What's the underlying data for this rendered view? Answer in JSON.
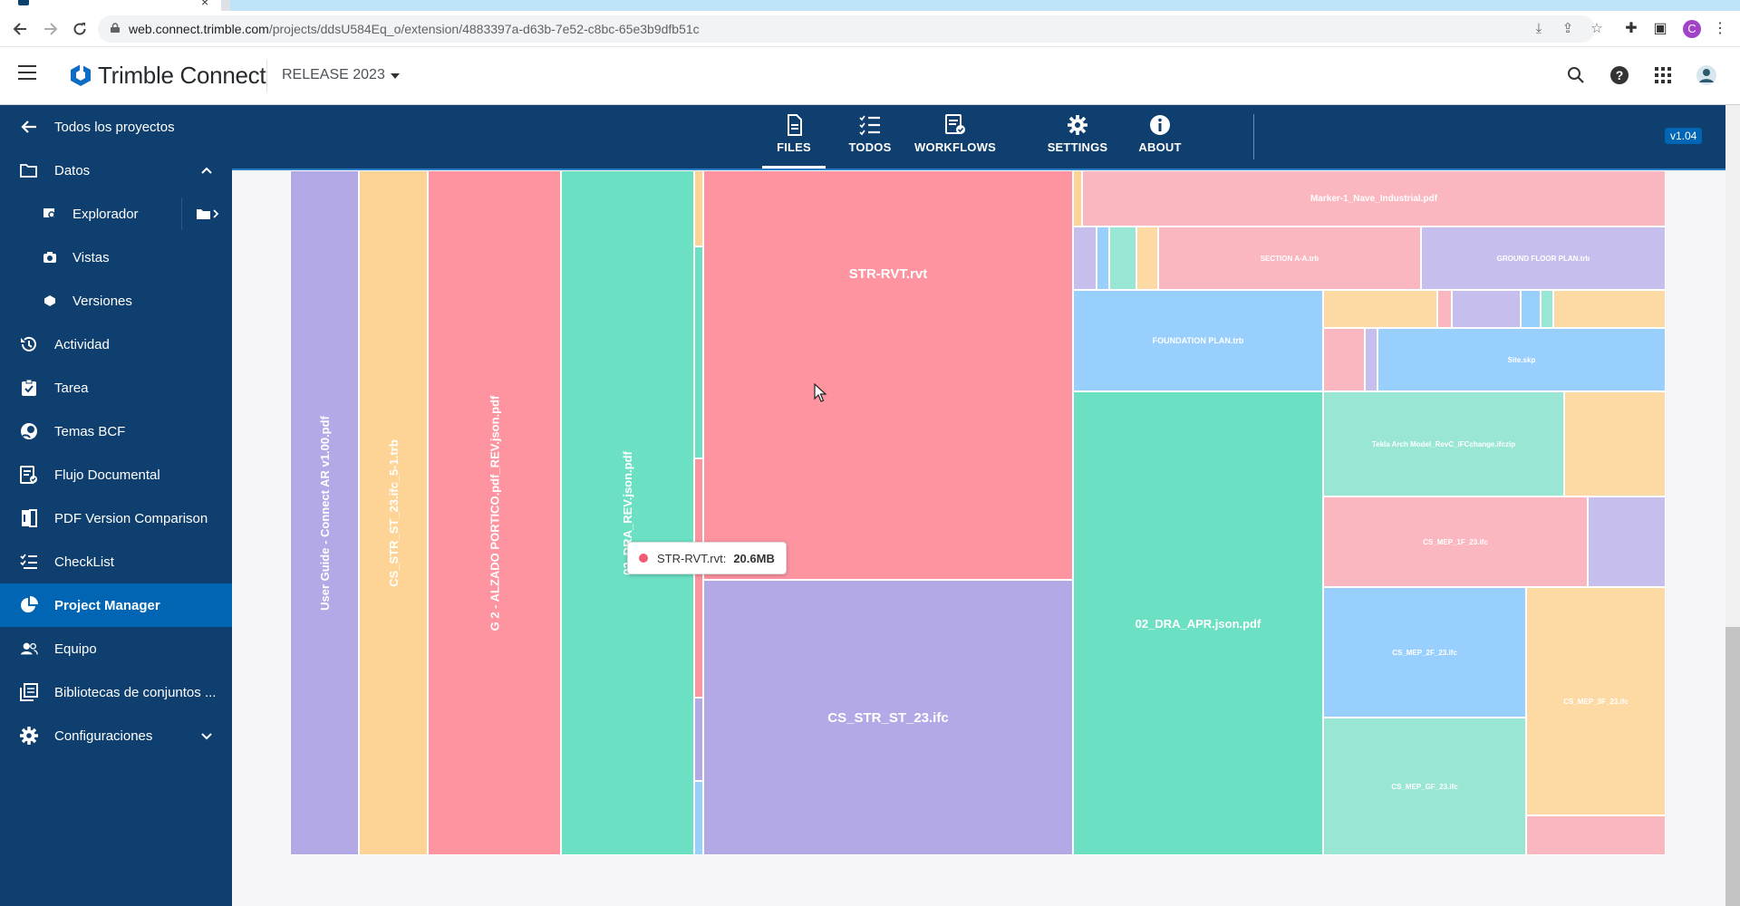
{
  "browser": {
    "url_host": "web.connect.trimble.com",
    "url_path": "/projects/ddsU584Eq_o/extension/4883397a-d63b-7e52-c8bc-65e3b9dfb51c",
    "profile_initial": "C"
  },
  "header": {
    "brand": "Trimble Connect",
    "project": "RELEASE 2023"
  },
  "sidebar": {
    "back_label": "Todos los proyectos",
    "items": [
      {
        "label": "Datos",
        "icon": "folder-icon"
      },
      {
        "label": "Explorador",
        "icon": "explorer-icon"
      },
      {
        "label": "Vistas",
        "icon": "camera-icon"
      },
      {
        "label": "Versiones",
        "icon": "versions-icon"
      },
      {
        "label": "Actividad",
        "icon": "history-icon"
      },
      {
        "label": "Tarea",
        "icon": "task-icon"
      },
      {
        "label": "Temas BCF",
        "icon": "bcf-icon"
      },
      {
        "label": "Flujo Documental",
        "icon": "workflow-icon"
      },
      {
        "label": "PDF Version Comparison",
        "icon": "pdf-compare-icon"
      },
      {
        "label": "CheckList",
        "icon": "checklist-icon"
      },
      {
        "label": "Project Manager",
        "icon": "pie-chart-icon"
      },
      {
        "label": "Equipo",
        "icon": "team-icon"
      },
      {
        "label": "Bibliotecas de conjuntos ...",
        "icon": "library-icon"
      },
      {
        "label": "Configuraciones",
        "icon": "gear-icon"
      }
    ]
  },
  "extension": {
    "tabs": [
      {
        "label": "FILES",
        "icon": "file-icon"
      },
      {
        "label": "TODOS",
        "icon": "list-icon"
      },
      {
        "label": "WORKFLOWS",
        "icon": "workflow-icon"
      },
      {
        "label": "SETTINGS",
        "icon": "gear-icon"
      },
      {
        "label": "ABOUT",
        "icon": "info-icon"
      }
    ],
    "active_tab": "FILES",
    "version": "v1.04"
  },
  "chart_data": {
    "type": "treemap",
    "unit": "MB",
    "tooltip": {
      "name": "STR-RVT.rvt:",
      "value": "20.6MB"
    },
    "items": [
      {
        "name": "User Guide - Connect AR v1.00.pdf",
        "color": "#b3a9e6"
      },
      {
        "name": "CS_STR_ST_23.ifc_5-1.trb",
        "color": "#fdd396"
      },
      {
        "name": "G 2 - ALZADO PORTICO.pdf_REV.json.pdf",
        "color": "#fd94a0"
      },
      {
        "name": "02_DRA_REV.json.pdf",
        "color": "#6ce0c3"
      },
      {
        "name": "STR-RVT.rvt",
        "value": 20.6,
        "color": "#fd94a0"
      },
      {
        "name": "CS_STR_ST_23.ifc",
        "color": "#b3a9e6"
      },
      {
        "name": "02_DRA_APR.json.pdf",
        "color": "#6ce0c3"
      },
      {
        "name": "Marker-1_Nave_Industrial.pdf",
        "color": "#fbb7c0"
      },
      {
        "name": "SECTION A-A.trb",
        "color": "#fbb7c0"
      },
      {
        "name": "GROUND FLOOR PLAN.trb",
        "color": "#c6bfee"
      },
      {
        "name": "FOUNDATION PLAN.trb",
        "color": "#99cffd"
      },
      {
        "name": "Site.skp",
        "color": "#99cffd"
      },
      {
        "name": "Tekla Arch Model_RevC_IFCchange.ifczip",
        "color": "#99e6d4"
      },
      {
        "name": "CS_MEP_1F_23.ifc",
        "color": "#fbb7c0"
      },
      {
        "name": "CS_MEP_2F_23.ifc",
        "color": "#99cffd"
      },
      {
        "name": "CS_MEP_3F_23.ifc",
        "color": "#fdd9a4"
      },
      {
        "name": "CS_MEP_GF_23.ifc",
        "color": "#99e6d4"
      }
    ]
  }
}
